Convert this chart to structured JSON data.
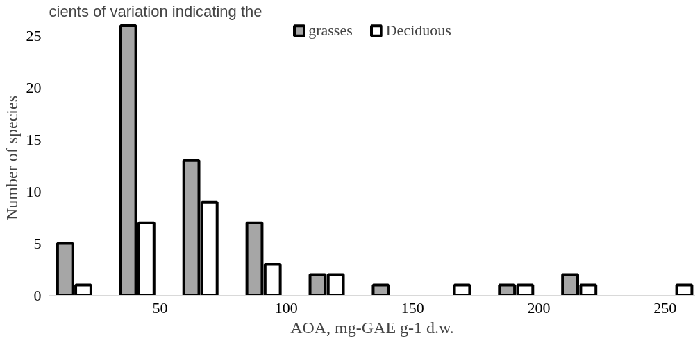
{
  "chart_data": {
    "type": "bar",
    "xlabel": "AOA, mg-GAE g-1 d.w.",
    "ylabel": "Number of species",
    "annotations": [
      "cients of variation indicating the"
    ],
    "x": [
      16,
      41,
      66,
      91,
      116,
      141,
      166,
      191,
      216,
      254
    ],
    "series": [
      {
        "name": "grasses",
        "color": "#a6a6a6",
        "values": [
          5,
          26,
          13,
          7,
          2,
          1,
          null,
          1,
          2,
          null
        ]
      },
      {
        "name": "Deciduous",
        "color": "#ffffff",
        "values": [
          1,
          7,
          9,
          3,
          2,
          null,
          1,
          1,
          1,
          1
        ]
      }
    ],
    "xlim": [
      6,
      262
    ],
    "xticks": [
      50,
      100,
      150,
      200,
      250
    ],
    "ylim": [
      0,
      26.5
    ],
    "yticks": [
      0,
      5,
      10,
      15,
      20,
      25
    ],
    "grid": false,
    "legend": "top"
  }
}
